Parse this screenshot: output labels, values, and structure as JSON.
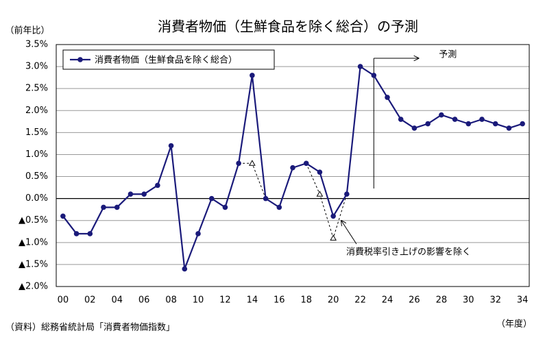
{
  "chart_data": {
    "type": "line",
    "title": "消費者物価（生鮮食品を除く総合）の予測",
    "y_label": "（前年比）",
    "x_label": "（年度）",
    "source": "（資料）総務省統計局「消費者物価指数」",
    "categories": [
      "00",
      null,
      "02",
      null,
      "04",
      null,
      "06",
      null,
      "08",
      null,
      "10",
      null,
      "12",
      null,
      "14",
      null,
      "16",
      null,
      "18",
      null,
      "20",
      null,
      "22",
      null,
      "24",
      null,
      "26",
      null,
      "28",
      null,
      "30",
      null,
      "32",
      null,
      "34"
    ],
    "series": [
      {
        "name": "消費者物価（生鮮食品を除く総合）",
        "color": "#1a1a7a",
        "values": [
          -0.4,
          -0.8,
          -0.8,
          -0.2,
          -0.2,
          0.1,
          0.1,
          0.3,
          1.2,
          -1.6,
          -0.8,
          0.0,
          -0.2,
          0.8,
          2.8,
          0.0,
          -0.2,
          0.7,
          0.8,
          0.6,
          -0.4,
          0.1,
          3.0,
          2.8,
          2.3,
          1.8,
          1.6,
          1.7,
          1.9,
          1.8,
          1.7,
          1.8,
          1.7,
          1.6,
          1.7
        ]
      }
    ],
    "dashed_series": {
      "color": "#000000",
      "values": [
        null,
        null,
        null,
        null,
        null,
        null,
        null,
        null,
        null,
        null,
        null,
        null,
        null,
        0.8,
        0.8,
        0.0,
        null,
        null,
        0.8,
        0.1,
        -0.9,
        0.1,
        null,
        null,
        null,
        null,
        null,
        null,
        null,
        null,
        null,
        null,
        null,
        null,
        null
      ]
    },
    "dashed_annotation": "消費税率引き上げの影響を除く",
    "forecast_label": "予測",
    "forecast_x": 23,
    "ylim": [
      -2.0,
      3.5
    ],
    "yticks": [
      {
        "value": 3.5,
        "label": "3.5%"
      },
      {
        "value": 3.0,
        "label": "3.0%"
      },
      {
        "value": 2.5,
        "label": "2.5%"
      },
      {
        "value": 2.0,
        "label": "2.0%"
      },
      {
        "value": 1.5,
        "label": "1.5%"
      },
      {
        "value": 1.0,
        "label": "1.0%"
      },
      {
        "value": 0.5,
        "label": "0.5%"
      },
      {
        "value": 0.0,
        "label": "0.0%"
      },
      {
        "value": -0.5,
        "label": "▲0.5%"
      },
      {
        "value": -1.0,
        "label": "▲1.0%"
      },
      {
        "value": -1.5,
        "label": "▲1.5%"
      },
      {
        "value": -2.0,
        "label": "▲2.0%"
      }
    ],
    "grid": true,
    "legend": "top-left"
  }
}
